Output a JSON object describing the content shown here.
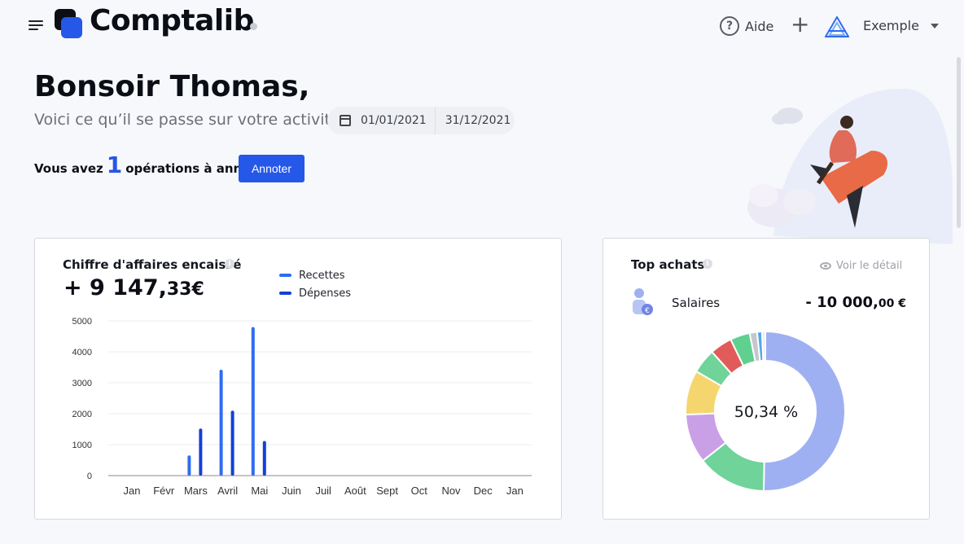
{
  "header": {
    "brand": "Comptalib",
    "help_label": "Aide",
    "add_symbol": "+",
    "company_name": "Exemple"
  },
  "greeting": {
    "title": "Bonsoir Thomas,",
    "subtitle": "Voici ce qu’il se passe sur votre activité",
    "date_start": "01/01/2021",
    "date_end": "31/12/2021",
    "ops_prefix": "Vous avez",
    "ops_count": "1",
    "ops_suffix": "opérations à annoter",
    "annotate_button": "Annoter"
  },
  "revenue_card": {
    "title": "Chiffre d'affaires encaissé",
    "amount_main": "+ 9 147,",
    "amount_cents": "33€",
    "legend": [
      "Recettes",
      "Dépenses"
    ]
  },
  "purchases_card": {
    "title": "Top achats",
    "view_detail": "Voir le détail",
    "top_item_label": "Salaires",
    "top_item_amount_main": "- 10 000,",
    "top_item_amount_cents": "00 €",
    "donut_center": "50,34 %"
  },
  "colors": {
    "accent": "#2558e8",
    "recettes": "#2f6cf0",
    "depenses": "#1340d6"
  },
  "icons": [
    "menu-icon",
    "comptalib-logo",
    "help-icon",
    "plus-icon",
    "company-logo-icon",
    "chevron-down-icon",
    "calendar-icon",
    "info-icon",
    "eye-icon",
    "person-euro-icon"
  ],
  "chart_data": [
    {
      "type": "bar",
      "title": "Chiffre d'affaires encaissé",
      "categories": [
        "Jan",
        "Févr",
        "Mars",
        "Avril",
        "Mai",
        "Juin",
        "Juil",
        "Août",
        "Sept",
        "Oct",
        "Nov",
        "Dec",
        "Jan"
      ],
      "series": [
        {
          "name": "Recettes",
          "color": "#2f6cf0",
          "values": [
            0,
            0,
            650,
            3420,
            4800,
            0,
            0,
            0,
            0,
            0,
            0,
            0,
            0
          ]
        },
        {
          "name": "Dépenses",
          "color": "#1340d6",
          "values": [
            0,
            0,
            1520,
            2100,
            1120,
            0,
            0,
            0,
            0,
            0,
            0,
            0,
            0
          ]
        }
      ],
      "yticks": [
        0,
        1000,
        2000,
        3000,
        4000,
        5000
      ],
      "ylim": [
        0,
        5000
      ],
      "grid": true,
      "legend": "top"
    },
    {
      "type": "pie",
      "title": "Top achats",
      "center_label": "50,34 %",
      "slices": [
        {
          "value": 50.34,
          "color": "#9fb0f2"
        },
        {
          "value": 14.0,
          "color": "#6fd39a"
        },
        {
          "value": 10.0,
          "color": "#c9a0e6"
        },
        {
          "value": 9.0,
          "color": "#f5d66e"
        },
        {
          "value": 5.0,
          "color": "#6fd39a"
        },
        {
          "value": 4.5,
          "color": "#e25b5b"
        },
        {
          "value": 4.0,
          "color": "#5fd08f"
        },
        {
          "value": 1.5,
          "color": "#c4c7cc"
        },
        {
          "value": 1.0,
          "color": "#52a8e8"
        },
        {
          "value": 0.66,
          "color": "#e9ebef"
        }
      ]
    }
  ]
}
